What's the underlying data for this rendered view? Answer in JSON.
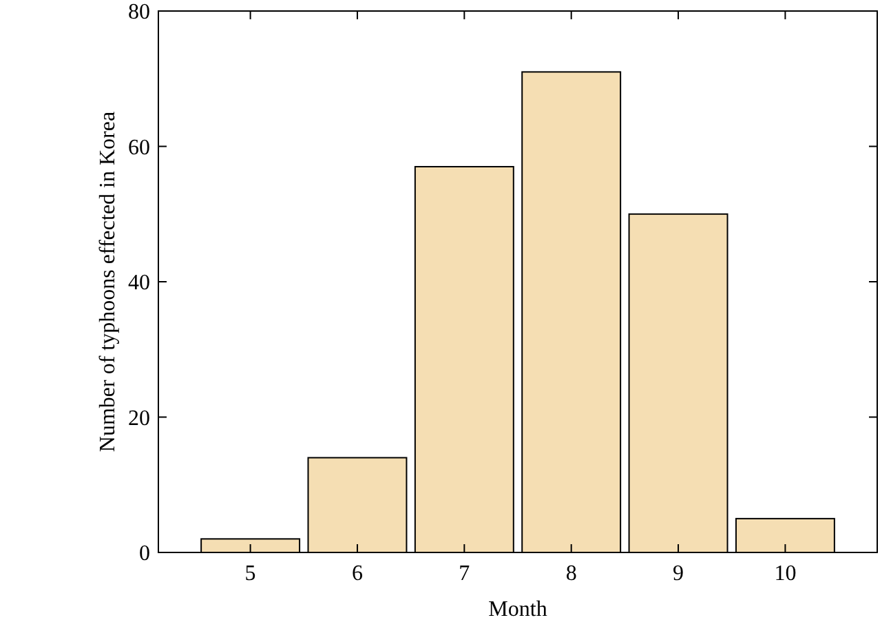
{
  "chart_data": {
    "type": "bar",
    "xlabel": "Month",
    "ylabel": "Number of typhoons effected in Korea",
    "categories": [
      "5",
      "6",
      "7",
      "8",
      "9",
      "10"
    ],
    "values": [
      2,
      14,
      57,
      71,
      50,
      5
    ],
    "color": "#f5deb3",
    "ylim": [
      0,
      80
    ],
    "yticks": [
      0,
      20,
      40,
      60,
      80
    ],
    "grid": false
  }
}
